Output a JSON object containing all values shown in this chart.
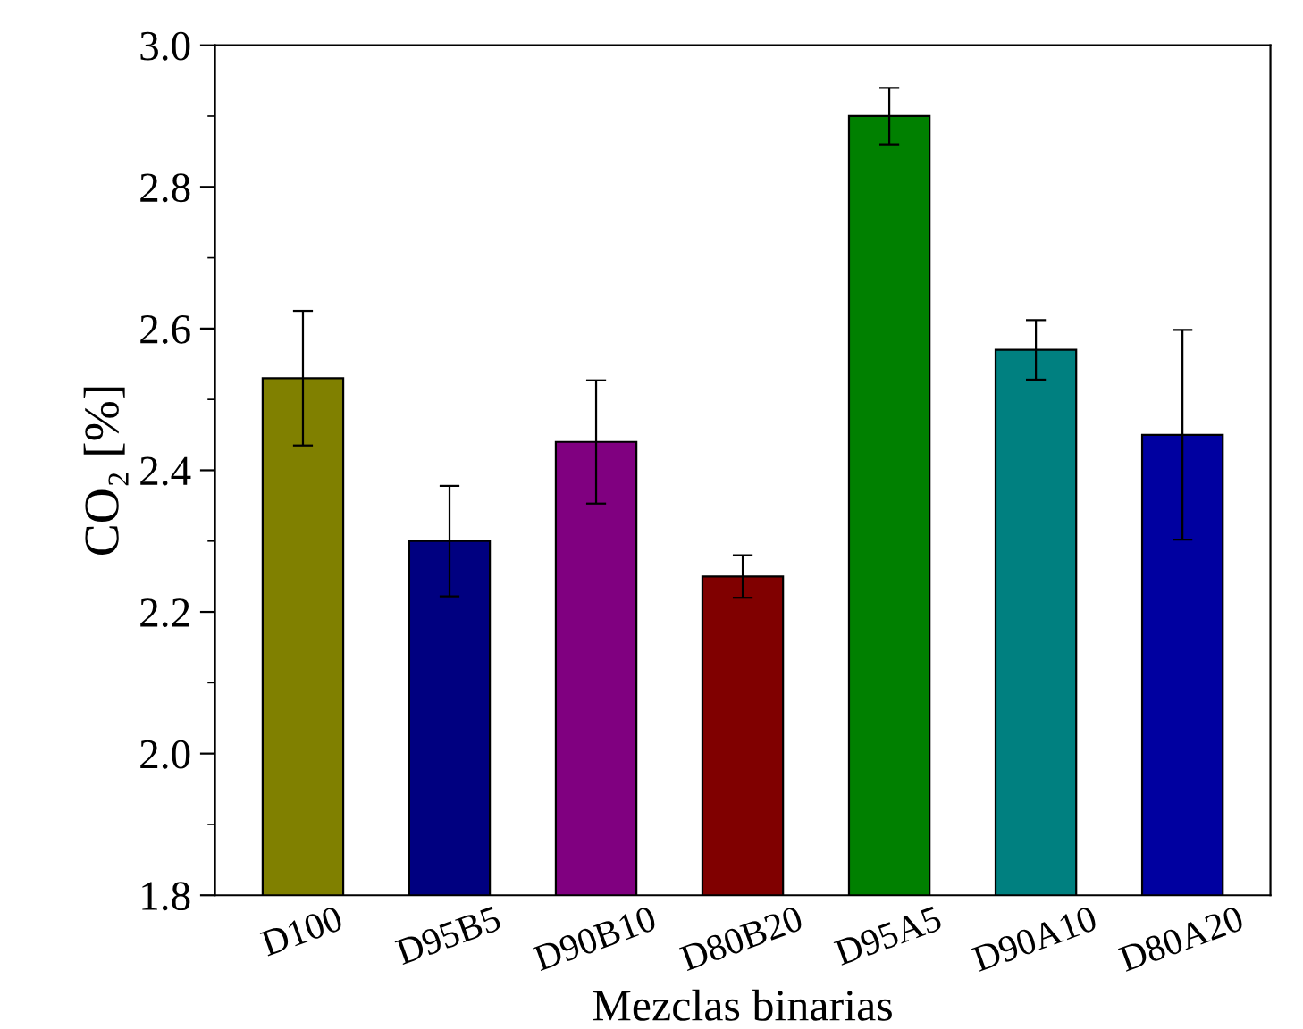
{
  "chart_data": {
    "type": "bar",
    "xlabel": "Mezclas binarias",
    "ylabel": "CO₂ [%]",
    "categories": [
      "D100",
      "D95B5",
      "D90B10",
      "D80B20",
      "D95A5",
      "D90A10",
      "D80A20"
    ],
    "values": [
      2.53,
      2.3,
      2.44,
      2.25,
      2.9,
      2.57,
      2.45
    ],
    "errors": [
      0.095,
      0.078,
      0.087,
      0.03,
      0.04,
      0.042,
      0.148
    ],
    "colors": [
      "#808000",
      "#000080",
      "#800080",
      "#800000",
      "#008000",
      "#008080",
      "#0000a0"
    ],
    "ylim": [
      1.8,
      3.0
    ],
    "yticks": [
      1.8,
      {
        "value": 2,
        "label": "2.0"
      },
      2.2,
      2.4,
      2.6,
      2.8,
      {
        "value": 3,
        "label": "3.0"
      }
    ],
    "grid": false,
    "legend": false
  }
}
